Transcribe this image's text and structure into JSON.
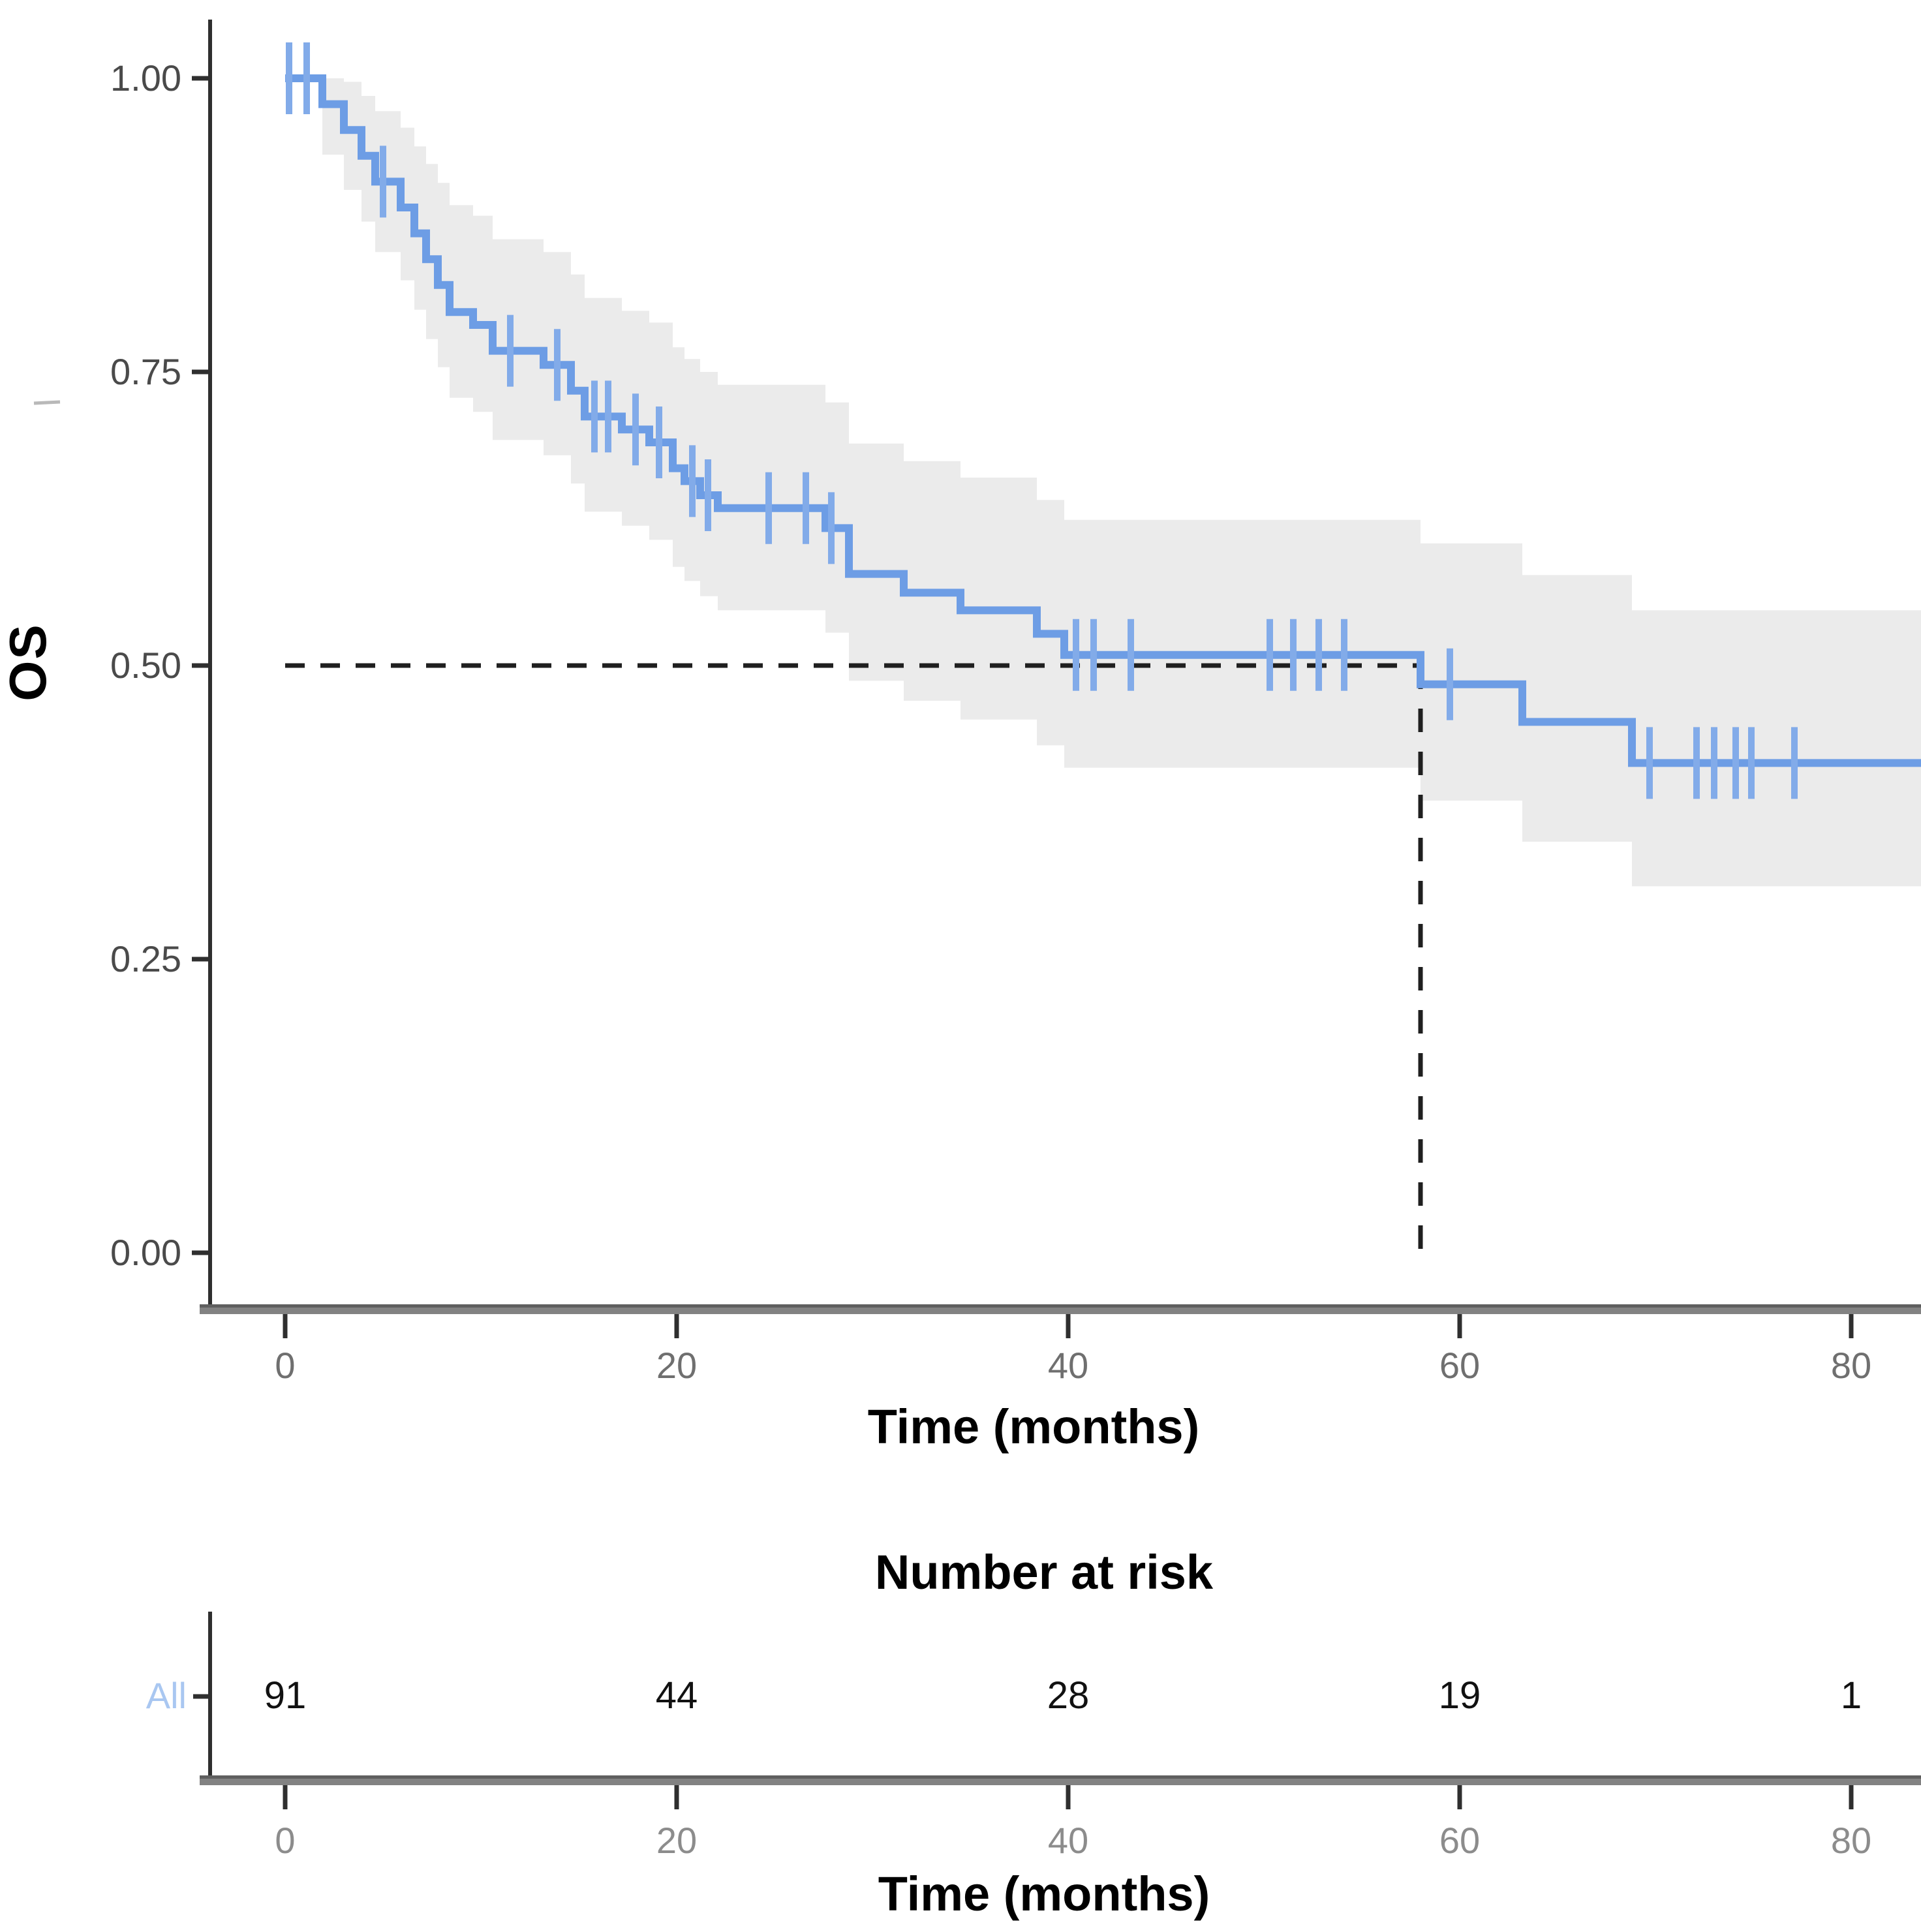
{
  "axes": {
    "y_title": "OS",
    "x_title": "Time (months)",
    "y_ticks": [
      "1.00",
      "0.75",
      "0.50",
      "0.25",
      "0.00"
    ],
    "y_tick_values": [
      1.0,
      0.75,
      0.5,
      0.25,
      0.0
    ],
    "x_ticks": [
      "0",
      "20",
      "40",
      "60",
      "80"
    ],
    "x_tick_values": [
      0,
      20,
      40,
      60,
      80
    ],
    "x_range": [
      0,
      83.6
    ],
    "y_range": [
      0.0,
      1.0
    ]
  },
  "risk_table": {
    "title": "Number at risk",
    "row_label": "All",
    "x_title": "Time (months)",
    "times": [
      0,
      20,
      40,
      60,
      80
    ],
    "counts": [
      "91",
      "44",
      "28",
      "19",
      "1"
    ]
  },
  "colors": {
    "curve": "#6d9de5",
    "censor": "#82abe9",
    "ci_band": "#ebebeb",
    "dashed": "#1f1f1f",
    "axis_line": "#2f2f2f",
    "thick_axis": "#828282",
    "thick_axis_top": "#5f5f5f",
    "tick_label": "#4a4a4a",
    "x_tick_label": "#6f6f6f",
    "bottom_tick_label": "#8c8c8c",
    "risk_count": "#111111",
    "row_label_blue": "#a9c7f1",
    "artifact": "#b9b9b9"
  },
  "chart_data": {
    "type": "line",
    "subtype": "kaplan-meier",
    "title": "",
    "xlabel": "Time (months)",
    "ylabel": "OS",
    "xlim": [
      0,
      83.6
    ],
    "ylim": [
      0,
      1.0
    ],
    "grid": false,
    "legend_position": "none",
    "median": {
      "time": 58,
      "survival": 0.5
    },
    "series": [
      {
        "name": "All",
        "steps": [
          [
            0,
            1.0
          ],
          [
            1.9,
            0.978
          ],
          [
            3.0,
            0.956
          ],
          [
            3.9,
            0.934
          ],
          [
            4.6,
            0.912
          ],
          [
            5.9,
            0.89
          ],
          [
            6.6,
            0.868
          ],
          [
            7.2,
            0.846
          ],
          [
            7.8,
            0.824
          ],
          [
            8.4,
            0.801
          ],
          [
            9.6,
            0.79
          ],
          [
            10.6,
            0.768
          ],
          [
            13.2,
            0.756
          ],
          [
            14.6,
            0.734
          ],
          [
            15.3,
            0.712
          ],
          [
            17.2,
            0.701
          ],
          [
            18.6,
            0.69
          ],
          [
            19.8,
            0.668
          ],
          [
            20.4,
            0.657
          ],
          [
            21.2,
            0.645
          ],
          [
            22.1,
            0.634
          ],
          [
            27.6,
            0.617
          ],
          [
            28.8,
            0.578
          ],
          [
            31.6,
            0.562
          ],
          [
            34.5,
            0.547
          ],
          [
            38.4,
            0.527
          ],
          [
            39.8,
            0.509
          ],
          [
            58.0,
            0.484
          ],
          [
            63.2,
            0.452
          ],
          [
            68.8,
            0.417
          ]
        ],
        "censors": [
          [
            0.2,
            1.0
          ],
          [
            1.1,
            1.0
          ],
          [
            5.0,
            0.912
          ],
          [
            11.5,
            0.768
          ],
          [
            13.9,
            0.756
          ],
          [
            15.8,
            0.712
          ],
          [
            16.5,
            0.712
          ],
          [
            17.9,
            0.701
          ],
          [
            19.1,
            0.69
          ],
          [
            20.8,
            0.657
          ],
          [
            21.6,
            0.645
          ],
          [
            24.7,
            0.634
          ],
          [
            26.6,
            0.634
          ],
          [
            27.9,
            0.617
          ],
          [
            40.4,
            0.509
          ],
          [
            41.3,
            0.509
          ],
          [
            43.2,
            0.509
          ],
          [
            50.3,
            0.509
          ],
          [
            51.5,
            0.509
          ],
          [
            52.8,
            0.509
          ],
          [
            54.1,
            0.509
          ],
          [
            59.5,
            0.484
          ],
          [
            69.7,
            0.417
          ],
          [
            72.1,
            0.417
          ],
          [
            73.0,
            0.417
          ],
          [
            74.1,
            0.417
          ],
          [
            74.9,
            0.417
          ],
          [
            77.1,
            0.417
          ]
        ],
        "ci": [
          [
            0,
            1.0,
            1.0
          ],
          [
            1.9,
            0.935,
            1.0
          ],
          [
            3.0,
            0.905,
            0.997
          ],
          [
            3.9,
            0.878,
            0.985
          ],
          [
            4.6,
            0.852,
            0.972
          ],
          [
            5.9,
            0.828,
            0.958
          ],
          [
            6.6,
            0.803,
            0.942
          ],
          [
            7.2,
            0.778,
            0.927
          ],
          [
            7.8,
            0.754,
            0.911
          ],
          [
            8.4,
            0.728,
            0.892
          ],
          [
            9.6,
            0.716,
            0.883
          ],
          [
            10.6,
            0.692,
            0.863
          ],
          [
            13.2,
            0.679,
            0.852
          ],
          [
            14.6,
            0.655,
            0.833
          ],
          [
            15.3,
            0.631,
            0.813
          ],
          [
            17.2,
            0.619,
            0.802
          ],
          [
            18.6,
            0.607,
            0.792
          ],
          [
            19.8,
            0.584,
            0.771
          ],
          [
            20.4,
            0.572,
            0.761
          ],
          [
            21.2,
            0.559,
            0.75
          ],
          [
            22.1,
            0.547,
            0.739
          ],
          [
            27.6,
            0.528,
            0.724
          ],
          [
            28.8,
            0.487,
            0.689
          ],
          [
            31.6,
            0.47,
            0.674
          ],
          [
            34.5,
            0.454,
            0.66
          ],
          [
            38.4,
            0.432,
            0.641
          ],
          [
            39.8,
            0.413,
            0.624
          ],
          [
            58.0,
            0.385,
            0.604
          ],
          [
            63.2,
            0.35,
            0.577
          ],
          [
            68.8,
            0.312,
            0.547
          ]
        ]
      }
    ],
    "number_at_risk": {
      "label": "All",
      "times": [
        0,
        20,
        40,
        60,
        80
      ],
      "counts": [
        91,
        44,
        28,
        19,
        1
      ]
    }
  }
}
